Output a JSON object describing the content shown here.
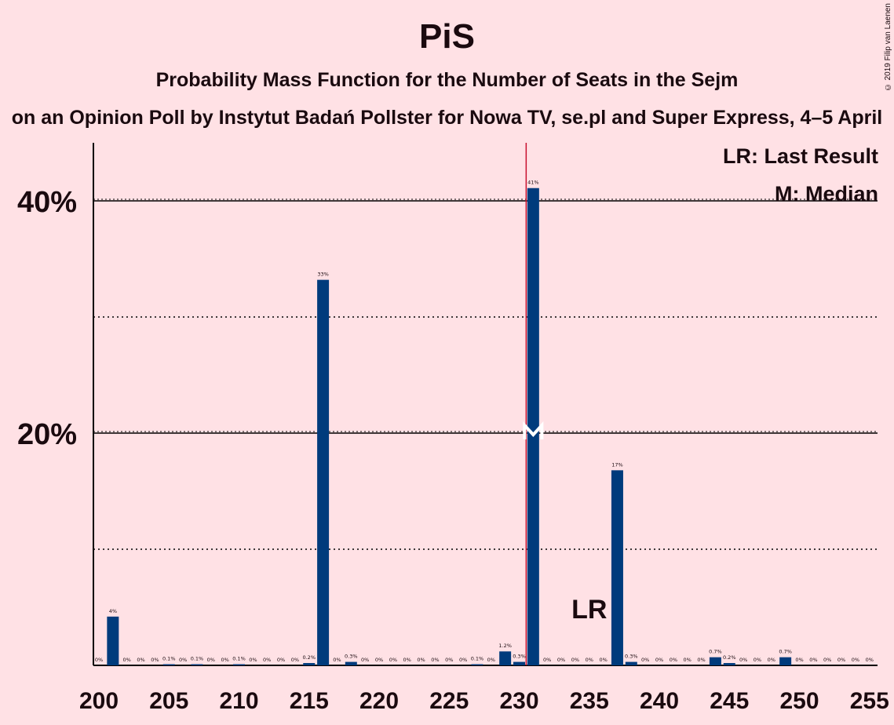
{
  "title": "PiS",
  "subtitle": "Probability Mass Function for the Number of Seats in the Sejm",
  "source": "on an Opinion Poll by Instytut Badań Pollster for Nowa TV, se.pl and Super Express, 4–5 April",
  "credit": "© 2019 Filip van Laenen",
  "legend": {
    "last_result": "LR: Last Result",
    "median": "M: Median"
  },
  "markers": {
    "last_result_label": "LR",
    "median_label": "M"
  },
  "colors": {
    "background": "#FFE1E5",
    "bar": "#003B7C",
    "median_line": "#C8102E",
    "text": "#1a0a0f"
  },
  "chart_data": {
    "type": "bar",
    "xlim": [
      200,
      255
    ],
    "ylim": [
      0,
      45
    ],
    "x_ticks": [
      200,
      205,
      210,
      215,
      220,
      225,
      230,
      235,
      240,
      245,
      250,
      255
    ],
    "y_ticks": [
      {
        "value": 20,
        "label": "20%"
      },
      {
        "value": 40,
        "label": "40%"
      }
    ],
    "minor_grid": [
      10,
      30
    ],
    "median_seat": 231,
    "last_result_seat": 235,
    "x": [
      200,
      201,
      202,
      203,
      204,
      205,
      206,
      207,
      208,
      209,
      210,
      211,
      212,
      213,
      214,
      215,
      216,
      217,
      218,
      219,
      220,
      221,
      222,
      223,
      224,
      225,
      226,
      227,
      228,
      229,
      230,
      231,
      232,
      233,
      234,
      235,
      236,
      237,
      238,
      239,
      240,
      241,
      242,
      243,
      244,
      245,
      246,
      247,
      248,
      249,
      250,
      251,
      252,
      253,
      254,
      255
    ],
    "values": [
      0,
      4.2,
      0,
      0,
      0,
      0.1,
      0,
      0.1,
      0,
      0,
      0.1,
      0,
      0,
      0,
      0,
      0.2,
      33.2,
      0,
      0.3,
      0,
      0,
      0,
      0,
      0,
      0,
      0,
      0,
      0.1,
      0,
      1.2,
      0.3,
      41.1,
      0,
      0,
      0,
      0,
      0,
      16.8,
      0.3,
      0,
      0,
      0,
      0,
      0,
      0.7,
      0.2,
      0,
      0,
      0,
      0.7,
      0,
      0,
      0,
      0,
      0,
      0
    ],
    "labels": [
      "0%",
      "4%",
      "0%",
      "0%",
      "0%",
      "0.1%",
      "0%",
      "0.1%",
      "0%",
      "0%",
      "0.1%",
      "0%",
      "0%",
      "0%",
      "0%",
      "0.2%",
      "33%",
      "0%",
      "0.3%",
      "0%",
      "0%",
      "0%",
      "0%",
      "0%",
      "0%",
      "0%",
      "0%",
      "0.1%",
      "0%",
      "1.2%",
      "0.3%",
      "41%",
      "0%",
      "0%",
      "0%",
      "0%",
      "0%",
      "17%",
      "0.3%",
      "0%",
      "0%",
      "0%",
      "0%",
      "0%",
      "0.7%",
      "0.2%",
      "0%",
      "0%",
      "0%",
      "0.7%",
      "0%",
      "0%",
      "0%",
      "0%",
      "0%",
      "0%"
    ]
  }
}
